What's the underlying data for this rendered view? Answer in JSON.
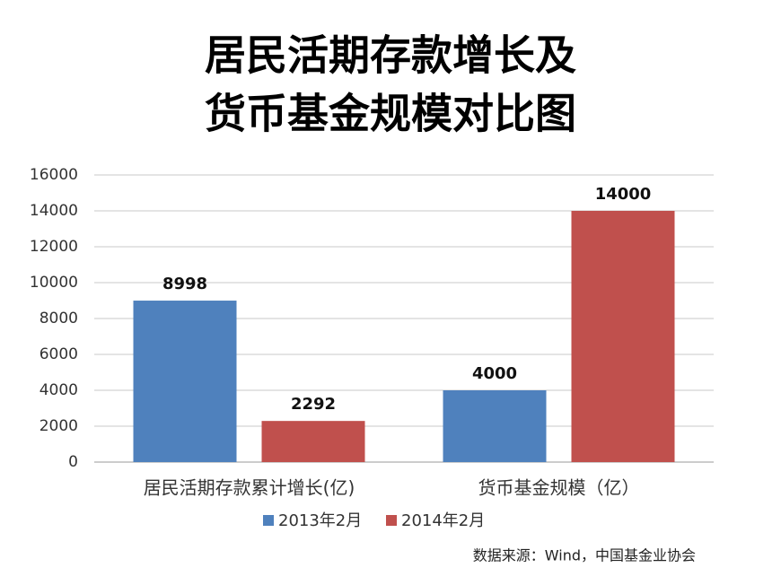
{
  "chart_data": {
    "type": "bar",
    "title": [
      "居民活期存款增长及",
      "货币基金规模对比图"
    ],
    "categories": [
      "居民活期存款累计增长(亿)",
      "货币基金规模（亿）"
    ],
    "series": [
      {
        "name": "2013年2月",
        "color": "#4f81bd",
        "values": [
          8998,
          4000
        ]
      },
      {
        "name": "2014年2月",
        "color": "#c0504d",
        "values": [
          2292,
          14000
        ]
      }
    ],
    "ylim": [
      0,
      16000
    ],
    "yticks": [
      0,
      2000,
      4000,
      6000,
      8000,
      10000,
      12000,
      14000,
      16000
    ],
    "grid": true,
    "legend": "bottom",
    "source": "数据来源：Wind，中国基金业协会"
  }
}
